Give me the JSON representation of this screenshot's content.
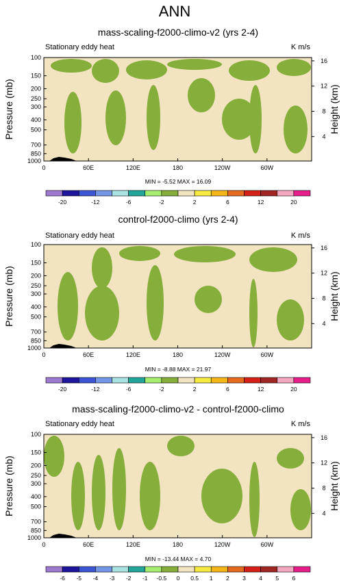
{
  "title": "ANN",
  "chart_data": [
    {
      "type": "heatmap",
      "title": "mass-scaling-f2000-climo-v2 (yrs 2-4)",
      "left_label": "Stationary eddy heat",
      "units": "K m/s",
      "ylabel": "Pressure (mb)",
      "ylabel_right": "Height (km)",
      "y_ticks": [
        "100",
        "150",
        "200",
        "250",
        "300",
        "400",
        "500",
        "700",
        "850",
        "1000"
      ],
      "y_ticks_right": [
        "16",
        "12",
        "8",
        "4"
      ],
      "x_ticks": [
        "0",
        "60E",
        "120E",
        "180",
        "120W",
        "60W"
      ],
      "stats": "MIN = -5.52   MAX = 16.09",
      "min": -5.52,
      "max": 16.09,
      "colorbar_labels": [
        "-20",
        "-12",
        "-6",
        "-2",
        "2",
        "6",
        "12",
        "20"
      ],
      "colorbar_levels": [
        -20,
        -16,
        -12,
        -8,
        -6,
        -4,
        -2,
        0,
        2,
        4,
        6,
        8,
        12,
        16,
        20
      ],
      "colorbar_colors": [
        "#9d79d0",
        "#1d159c",
        "#3c55d4",
        "#7496e6",
        "#a8e2e2",
        "#22a69a",
        "#a5ee6f",
        "#86ae3a",
        "#f2e3c1",
        "#f6ea40",
        "#f4b616",
        "#e66a1e",
        "#d42016",
        "#a02624",
        "#f3a8c0",
        "#e61e8a"
      ]
    },
    {
      "type": "heatmap",
      "title": "control-f2000-climo (yrs 2-4)",
      "left_label": "Stationary eddy heat",
      "units": "K m/s",
      "ylabel": "Pressure (mb)",
      "ylabel_right": "Height (km)",
      "y_ticks": [
        "100",
        "150",
        "200",
        "250",
        "300",
        "400",
        "500",
        "700",
        "850",
        "1000"
      ],
      "y_ticks_right": [
        "16",
        "12",
        "8",
        "4"
      ],
      "x_ticks": [
        "0",
        "60E",
        "120E",
        "180",
        "120W",
        "60W"
      ],
      "stats": "MIN = -8.88   MAX = 21.97",
      "min": -8.88,
      "max": 21.97,
      "colorbar_labels": [
        "-20",
        "-12",
        "-6",
        "-2",
        "2",
        "6",
        "12",
        "20"
      ],
      "colorbar_levels": [
        -20,
        -16,
        -12,
        -8,
        -6,
        -4,
        -2,
        0,
        2,
        4,
        6,
        8,
        12,
        16,
        20
      ],
      "colorbar_colors": [
        "#9d79d0",
        "#1d159c",
        "#3c55d4",
        "#7496e6",
        "#a8e2e2",
        "#22a69a",
        "#a5ee6f",
        "#86ae3a",
        "#f2e3c1",
        "#f6ea40",
        "#f4b616",
        "#e66a1e",
        "#d42016",
        "#a02624",
        "#f3a8c0",
        "#e61e8a"
      ]
    },
    {
      "type": "heatmap",
      "title": "mass-scaling-f2000-climo-v2 - control-f2000-climo",
      "left_label": "Stationary eddy heat",
      "units": "K m/s",
      "ylabel": "Pressure (mb)",
      "ylabel_right": "Height (km)",
      "y_ticks": [
        "100",
        "150",
        "200",
        "250",
        "300",
        "400",
        "500",
        "700",
        "850",
        "1000"
      ],
      "y_ticks_right": [
        "16",
        "12",
        "8",
        "4"
      ],
      "x_ticks": [
        "0",
        "60E",
        "120E",
        "180",
        "120W",
        "60W"
      ],
      "stats": "MIN = -13.44   MAX = 4.70",
      "min": -13.44,
      "max": 4.7,
      "colorbar_labels": [
        "-6",
        "-5",
        "-4",
        "-3",
        "-2",
        "-1",
        "-0.5",
        "0",
        "0.5",
        "1",
        "2",
        "3",
        "4",
        "5",
        "6"
      ],
      "colorbar_levels": [
        -6,
        -5,
        -4,
        -3,
        -2,
        -1,
        -0.5,
        0,
        0.5,
        1,
        2,
        3,
        4,
        5,
        6
      ],
      "colorbar_colors": [
        "#9d79d0",
        "#1d159c",
        "#3c55d4",
        "#7496e6",
        "#a8e2e2",
        "#22a69a",
        "#a5ee6f",
        "#86ae3a",
        "#f2e3c1",
        "#f6ea40",
        "#f4b616",
        "#e66a1e",
        "#d42016",
        "#a02624",
        "#f3a8c0",
        "#e61e8a"
      ]
    }
  ],
  "colors": {
    "positive_small": "#f2e3c1",
    "negative_small": "#86ae3a",
    "topography": "#000000"
  }
}
